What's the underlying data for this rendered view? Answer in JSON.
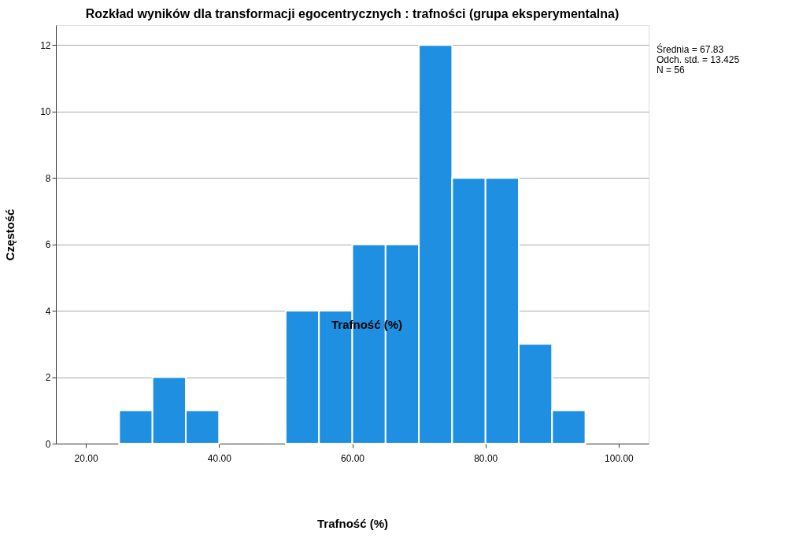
{
  "chart_data": {
    "type": "histogram",
    "title": "Rozkład wyników dla transformacji egocentrycznych : trafności (grupa eksperymentalna)",
    "xlabel": "Trafność (%)",
    "ylabel": "Częstość",
    "bins": [
      25,
      30,
      35,
      40,
      45,
      50,
      55,
      60,
      65,
      70,
      75,
      80,
      85,
      90,
      95
    ],
    "values": [
      1,
      2,
      1,
      0,
      0,
      4,
      4,
      6,
      6,
      12,
      8,
      8,
      3,
      1
    ],
    "color": "#1e8fe1",
    "xlim": [
      15.5,
      104.5
    ],
    "xticks": [
      {
        "value": 20,
        "label": "20.00"
      },
      {
        "value": 40,
        "label": "40.00"
      },
      {
        "value": 60,
        "label": "60.00"
      },
      {
        "value": 80,
        "label": "80.00"
      },
      {
        "value": 100,
        "label": "100.00"
      }
    ],
    "ylim": [
      0,
      12.6
    ],
    "yticks": [
      0,
      2,
      4,
      6,
      8,
      10,
      12
    ],
    "grid": "y",
    "annotations": [
      "Średnia = 67.83",
      "Odch. std. = 13.425",
      "N = 56",
      "Trafność (%)"
    ]
  }
}
